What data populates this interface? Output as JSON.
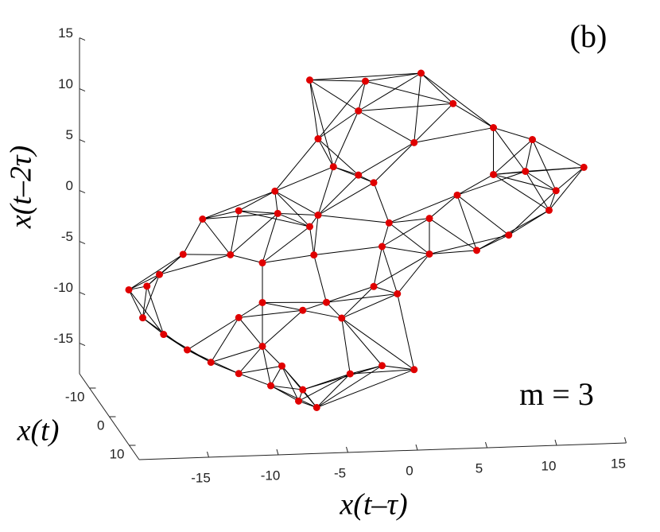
{
  "chart_data": {
    "type": "scatter3d",
    "annotation": "(b)",
    "embedding_label": "m = 3",
    "xlabel": "x(t–τ)",
    "ylabel": "x(t)",
    "zlabel": "x(t–2τ)",
    "xlim": [
      -20,
      15
    ],
    "ylim": [
      -15,
      15
    ],
    "zlim": [
      -18,
      15
    ],
    "xticks": [
      -15,
      -10,
      -5,
      0,
      5,
      10,
      15
    ],
    "yticks": [
      -10,
      0,
      10
    ],
    "zticks": [
      -15,
      -10,
      -5,
      0,
      5,
      10,
      15
    ],
    "edge_color": "#000000",
    "series": [
      {
        "color": "#e00000",
        "x": [
          -18.6,
          -17.6,
          -16.1,
          -14.4,
          -12.7,
          -10.7,
          -8.4,
          -6.4,
          -5.1,
          -6.1,
          -7.6,
          -9,
          -10.7,
          -13.3,
          -10.7,
          -7.9,
          -5.6,
          -5.3,
          -9,
          -11.3,
          -14.7,
          -16.4,
          -17.3,
          -5.6,
          -1.6,
          2.4,
          4.7,
          7.6,
          10.4,
          14.1,
          12.1,
          11.6,
          8.7,
          6.4,
          3,
          -0.4,
          0.1,
          3,
          5,
          7.6,
          9.9,
          -5,
          -3.9,
          -2.1,
          -8.1,
          -4.4,
          -3.3,
          -2.7,
          -0.4,
          1.9,
          0.7,
          -1,
          -6.1,
          -9,
          -5,
          -1,
          1.9,
          -2.1
        ],
        "y": [
          0,
          0,
          0,
          0,
          0,
          0,
          0,
          0,
          0,
          0,
          0,
          0,
          0,
          0,
          0,
          0,
          0,
          0,
          0,
          0,
          0,
          0,
          0,
          0,
          0,
          0,
          0,
          0,
          0,
          0,
          0,
          0,
          0,
          0,
          0,
          0,
          0,
          0,
          0,
          0,
          0,
          0,
          0,
          0,
          0,
          0,
          0,
          0,
          0,
          0,
          0,
          0,
          0,
          0,
          0,
          0,
          0,
          0
        ],
        "z": [
          -5.6,
          -8.4,
          -10.1,
          -11.7,
          -13,
          -14.2,
          -15.5,
          -17.1,
          -17.8,
          -16,
          -13.6,
          -11.6,
          -8.7,
          1.1,
          1.8,
          1.4,
          0,
          -2.8,
          -3.4,
          -2.5,
          -2.3,
          -4.2,
          -5.3,
          14.4,
          14.1,
          14.7,
          11.6,
          9.1,
          7.8,
          4.9,
          2.7,
          0.8,
          -1.5,
          -2.9,
          -3.1,
          -2.2,
          0.1,
          0.4,
          2.6,
          4.5,
          4.7,
          8.6,
          5.8,
          4.9,
          3.6,
          -7.5,
          -9.1,
          -14.6,
          -13.9,
          -14.4,
          -6.9,
          -6.1,
          -8.2,
          -7.3,
          1.1,
          4.1,
          7.9,
          11.2
        ]
      }
    ]
  }
}
